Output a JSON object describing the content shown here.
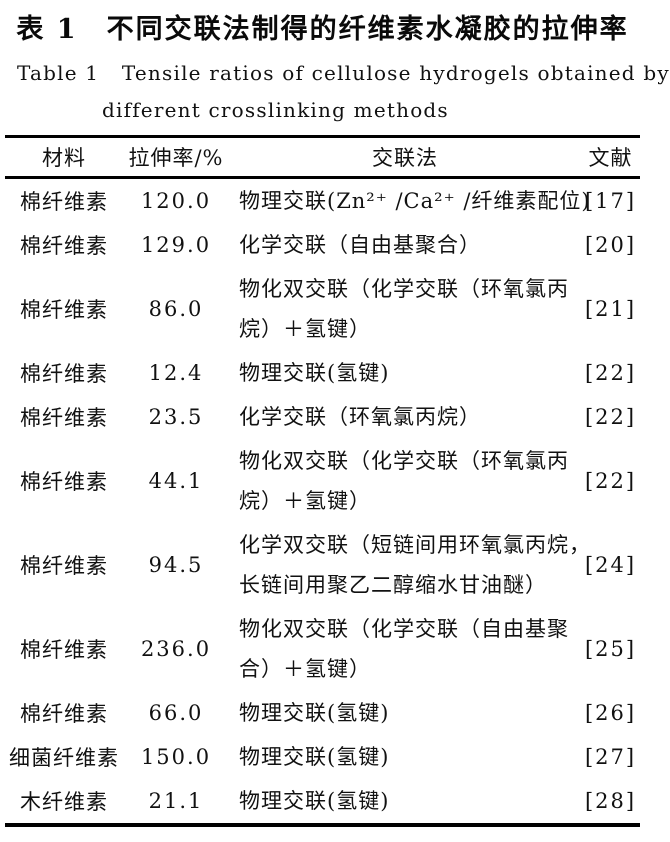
{
  "caption": {
    "title_zh": "表 1　不同交联法制得的纤维素水凝胶的拉伸率",
    "title_en_line1": "Table 1   Tensile ratios of cellulose hydrogels obtained by",
    "title_en_line2": "different crosslinking methods"
  },
  "table": {
    "columns": [
      "材料",
      "拉伸率/%",
      "交联法",
      "文献"
    ],
    "rows": [
      {
        "material": "棉纤维素",
        "ratio": "120.0",
        "method": "物理交联(Zn²⁺ /Ca²⁺ /纤维素配位)",
        "ref": "[17]"
      },
      {
        "material": "棉纤维素",
        "ratio": "129.0",
        "method": "化学交联（自由基聚合）",
        "ref": "[20]"
      },
      {
        "material": "棉纤维素",
        "ratio": "86.0",
        "method": "物化双交联（化学交联（环氧氯丙\n烷）＋氢键）",
        "ref": "[21]"
      },
      {
        "material": "棉纤维素",
        "ratio": "12.4",
        "method": "物理交联(氢键)",
        "ref": "[22]"
      },
      {
        "material": "棉纤维素",
        "ratio": "23.5",
        "method": "化学交联（环氧氯丙烷）",
        "ref": "[22]"
      },
      {
        "material": "棉纤维素",
        "ratio": "44.1",
        "method": "物化双交联（化学交联（环氧氯丙\n烷）＋氢键）",
        "ref": "[22]"
      },
      {
        "material": "棉纤维素",
        "ratio": "94.5",
        "method": "化学双交联（短链间用环氧氯丙烷，\n长链间用聚乙二醇缩水甘油醚）",
        "ref": "[24]"
      },
      {
        "material": "棉纤维素",
        "ratio": "236.0",
        "method": "物化双交联（化学交联（自由基聚\n合）＋氢键）",
        "ref": "[25]"
      },
      {
        "material": "棉纤维素",
        "ratio": "66.0",
        "method": "物理交联(氢键)",
        "ref": "[26]"
      },
      {
        "material": "细菌纤维素",
        "ratio": "150.0",
        "method": "物理交联(氢键)",
        "ref": "[27]"
      },
      {
        "material": "木纤维素",
        "ratio": "21.1",
        "method": "物理交联(氢键)",
        "ref": "[28]"
      }
    ]
  }
}
